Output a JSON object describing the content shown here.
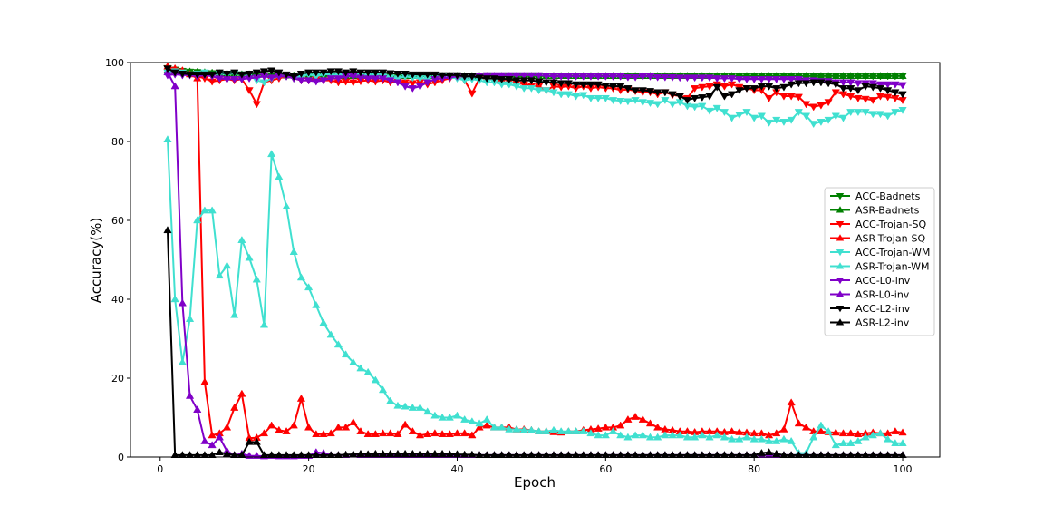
{
  "chart_data": {
    "type": "line",
    "title": "",
    "xlabel": "Epoch",
    "ylabel": "Accuracy(%)",
    "xlim": [
      -4,
      105
    ],
    "ylim": [
      0,
      100
    ],
    "xticks": [
      0,
      20,
      40,
      60,
      80,
      100
    ],
    "yticks": [
      0,
      20,
      40,
      60,
      80,
      100
    ],
    "grid": false,
    "legend_position": "right-center",
    "x": [
      1,
      2,
      3,
      4,
      5,
      6,
      7,
      8,
      9,
      10,
      11,
      12,
      13,
      14,
      15,
      16,
      17,
      18,
      19,
      20,
      21,
      22,
      23,
      24,
      25,
      26,
      27,
      28,
      29,
      30,
      31,
      32,
      33,
      34,
      35,
      36,
      37,
      38,
      39,
      40,
      41,
      42,
      43,
      44,
      45,
      46,
      47,
      48,
      49,
      50,
      51,
      52,
      53,
      54,
      55,
      56,
      57,
      58,
      59,
      60,
      61,
      62,
      63,
      64,
      65,
      66,
      67,
      68,
      69,
      70,
      71,
      72,
      73,
      74,
      75,
      76,
      77,
      78,
      79,
      80,
      81,
      82,
      83,
      84,
      85,
      86,
      87,
      88,
      89,
      90,
      91,
      92,
      93,
      94,
      95,
      96,
      97,
      98,
      99,
      100
    ],
    "series": [
      {
        "name": "ACC-Badnets",
        "color": "#008000",
        "marker": "triangle-down",
        "values": [
          98.6,
          98.2,
          97.9,
          97.7,
          97.6,
          97.4,
          97.3,
          97.2,
          97.1,
          97.0,
          97.0,
          96.9,
          96.9,
          96.8,
          96.8,
          96.8,
          96.7,
          96.7,
          96.7,
          96.6,
          96.6,
          96.6,
          96.6,
          96.6,
          96.6,
          96.6,
          96.6,
          96.6,
          96.6,
          96.6,
          96.6,
          96.6,
          96.6,
          96.6,
          96.6,
          96.6,
          96.6,
          96.6,
          96.6,
          96.6,
          96.6,
          96.6,
          96.6,
          96.6,
          96.6,
          96.6,
          96.6,
          96.6,
          96.6,
          96.6,
          96.6,
          96.6,
          96.6,
          96.6,
          96.6,
          96.6,
          96.6,
          96.6,
          96.6,
          96.6,
          96.6,
          96.6,
          96.6,
          96.6,
          96.6,
          96.6,
          96.6,
          96.6,
          96.6,
          96.6,
          96.6,
          96.6,
          96.6,
          96.6,
          96.6,
          96.6,
          96.6,
          96.6,
          96.6,
          96.6,
          96.6,
          96.6,
          96.6,
          96.6,
          96.6,
          96.6,
          96.6,
          96.6,
          96.6,
          96.6,
          96.6,
          96.6,
          96.6,
          96.6,
          96.6,
          96.6,
          96.6,
          96.6,
          96.6,
          96.6
        ]
      },
      {
        "name": "ASR-Badnets",
        "color": "#008000",
        "marker": "triangle-up",
        "values": [
          98.0,
          97.9,
          97.8,
          97.7,
          97.6,
          97.5,
          97.4,
          97.3,
          97.2,
          97.1,
          97.0,
          97.0,
          96.9,
          96.9,
          96.8,
          96.8,
          96.7,
          96.7,
          96.7,
          96.6,
          96.6,
          96.6,
          96.6,
          96.6,
          96.6,
          96.6,
          96.6,
          96.6,
          96.6,
          96.6,
          96.6,
          96.6,
          96.6,
          96.6,
          96.6,
          96.6,
          96.6,
          96.6,
          96.6,
          96.6,
          96.6,
          96.6,
          96.6,
          96.6,
          96.6,
          96.6,
          96.6,
          96.6,
          96.6,
          96.6,
          96.6,
          96.6,
          96.6,
          96.6,
          96.6,
          96.6,
          96.6,
          96.6,
          96.6,
          96.6,
          96.6,
          96.6,
          96.6,
          96.6,
          96.6,
          96.6,
          96.6,
          96.6,
          96.6,
          96.6,
          96.6,
          96.6,
          96.6,
          96.6,
          96.6,
          96.6,
          96.6,
          96.6,
          96.6,
          96.6,
          96.6,
          96.6,
          96.6,
          96.6,
          96.6,
          96.6,
          96.6,
          96.6,
          96.6,
          96.6,
          96.6,
          96.6,
          96.6,
          96.6,
          96.6,
          96.6,
          96.6,
          96.6,
          96.6,
          96.6
        ]
      },
      {
        "name": "ACC-Trojan-SQ",
        "color": "#ff0000",
        "marker": "triangle-down",
        "values": [
          98.5,
          98.0,
          97.5,
          97.0,
          96.5,
          96.0,
          95.2,
          95.5,
          95.8,
          95.5,
          95.8,
          93.0,
          89.5,
          95.0,
          95.5,
          96.0,
          96.5,
          96.0,
          95.5,
          95.5,
          95.8,
          95.5,
          95.5,
          95.0,
          95.2,
          95.0,
          95.3,
          95.5,
          95.2,
          95.5,
          95.0,
          95.3,
          95.0,
          94.8,
          95.0,
          94.5,
          95.0,
          95.5,
          96.0,
          96.2,
          95.5,
          92.2,
          96.0,
          96.0,
          95.5,
          95.0,
          95.0,
          94.8,
          94.5,
          94.2,
          94.0,
          93.0,
          94.0,
          93.8,
          94.0,
          93.5,
          94.0,
          93.5,
          93.8,
          93.5,
          93.5,
          93.0,
          93.2,
          92.8,
          92.5,
          92.5,
          92.0,
          92.5,
          91.8,
          91.5,
          91.0,
          93.5,
          93.8,
          94.0,
          94.5,
          94.0,
          94.5,
          93.8,
          93.5,
          93.0,
          93.0,
          91.0,
          92.5,
          91.5,
          91.5,
          91.3,
          89.5,
          88.8,
          89.2,
          90.0,
          92.5,
          92.0,
          91.5,
          91.0,
          90.8,
          90.5,
          91.5,
          91.3,
          91.0,
          90.5
        ]
      },
      {
        "name": "ASR-Trojan-SQ",
        "color": "#ff0000",
        "marker": "triangle-up",
        "values": [
          99.0,
          98.5,
          98.0,
          97.0,
          96.0,
          19.0,
          5.5,
          6.0,
          7.5,
          12.5,
          16.0,
          4.8,
          4.9,
          6.0,
          8.0,
          6.8,
          6.5,
          8.0,
          14.8,
          7.5,
          5.8,
          5.8,
          6.0,
          7.5,
          7.5,
          8.8,
          6.5,
          5.8,
          5.8,
          6.0,
          6.0,
          5.8,
          8.2,
          6.5,
          5.5,
          5.8,
          6.0,
          5.8,
          5.8,
          6.0,
          6.0,
          5.5,
          7.5,
          8.0,
          7.5,
          7.5,
          7.5,
          7.0,
          7.0,
          6.8,
          6.5,
          6.5,
          6.3,
          6.2,
          6.5,
          6.5,
          6.8,
          7.0,
          7.2,
          7.5,
          7.5,
          8.0,
          9.5,
          10.2,
          9.5,
          8.5,
          7.5,
          7.0,
          6.8,
          6.5,
          6.5,
          6.3,
          6.5,
          6.5,
          6.5,
          6.3,
          6.5,
          6.3,
          6.2,
          6.0,
          6.0,
          5.5,
          6.0,
          7.0,
          13.8,
          8.5,
          7.5,
          6.5,
          6.5,
          6.3,
          6.2,
          6.0,
          6.0,
          5.8,
          6.0,
          6.2,
          6.0,
          6.0,
          6.5,
          6.2
        ]
      },
      {
        "name": "ACC-Trojan-WM",
        "color": "#40e0d0",
        "marker": "triangle-down",
        "values": [
          97.5,
          97.8,
          97.5,
          97.0,
          97.2,
          97.5,
          97.0,
          97.2,
          97.0,
          97.3,
          97.0,
          96.8,
          95.5,
          95.0,
          96.0,
          96.5,
          96.5,
          96.0,
          96.5,
          97.0,
          96.5,
          97.0,
          97.0,
          96.8,
          97.0,
          97.0,
          96.8,
          96.8,
          96.5,
          96.5,
          96.2,
          96.0,
          96.5,
          96.2,
          96.0,
          96.0,
          96.5,
          96.5,
          96.2,
          96.0,
          95.5,
          95.8,
          95.5,
          95.0,
          95.0,
          94.5,
          94.5,
          94.0,
          93.5,
          93.5,
          93.0,
          93.0,
          92.5,
          92.0,
          92.0,
          91.5,
          91.8,
          91.0,
          91.0,
          91.0,
          90.5,
          90.3,
          90.2,
          90.5,
          90.0,
          89.8,
          89.5,
          90.5,
          89.5,
          90.0,
          89.0,
          88.8,
          89.0,
          87.8,
          88.5,
          87.5,
          86.0,
          86.8,
          87.5,
          86.0,
          86.5,
          84.8,
          85.5,
          85.0,
          85.5,
          87.5,
          86.5,
          84.5,
          85.0,
          85.5,
          86.5,
          86.0,
          87.5,
          87.5,
          87.5,
          87.0,
          87.0,
          86.5,
          87.5,
          88.0
        ]
      },
      {
        "name": "ASR-Trojan-WM",
        "color": "#40e0d0",
        "marker": "triangle-up",
        "values": [
          80.5,
          40.0,
          24.0,
          35.0,
          60.0,
          62.5,
          62.5,
          46.0,
          48.5,
          36.0,
          55.0,
          50.5,
          45.0,
          33.5,
          76.8,
          71.0,
          63.5,
          52.0,
          45.5,
          43.0,
          38.5,
          34.0,
          31.0,
          28.5,
          26.0,
          24.0,
          22.5,
          21.5,
          19.5,
          17.0,
          14.2,
          13.0,
          12.8,
          12.5,
          12.5,
          11.5,
          10.5,
          10.0,
          10.0,
          10.5,
          9.5,
          9.0,
          8.5,
          9.5,
          7.5,
          7.5,
          7.0,
          7.0,
          6.8,
          6.8,
          6.5,
          6.5,
          6.8,
          6.5,
          6.5,
          6.5,
          6.5,
          6.0,
          5.5,
          5.5,
          6.5,
          5.5,
          5.0,
          5.5,
          5.5,
          5.0,
          5.0,
          5.5,
          5.5,
          5.5,
          5.0,
          5.0,
          5.5,
          5.0,
          5.5,
          5.0,
          4.5,
          4.5,
          5.0,
          4.5,
          4.5,
          4.0,
          4.0,
          4.5,
          4.0,
          1.0,
          1.0,
          5.0,
          8.0,
          6.5,
          3.0,
          3.5,
          3.5,
          4.0,
          5.0,
          5.5,
          6.0,
          4.5,
          3.5,
          3.5
        ]
      },
      {
        "name": "ACC-L0-inv",
        "color": "#8000c8",
        "marker": "triangle-down",
        "values": [
          96.8,
          97.0,
          96.8,
          96.8,
          96.5,
          96.8,
          96.5,
          96.0,
          95.8,
          95.8,
          95.8,
          96.0,
          96.2,
          96.5,
          96.2,
          96.5,
          96.5,
          96.0,
          95.5,
          95.5,
          95.2,
          95.5,
          96.0,
          96.0,
          96.5,
          96.5,
          96.2,
          96.0,
          96.0,
          96.0,
          95.5,
          95.0,
          94.0,
          93.5,
          94.0,
          95.0,
          95.8,
          96.0,
          96.2,
          96.5,
          96.5,
          96.5,
          96.7,
          96.8,
          96.8,
          96.8,
          96.8,
          96.8,
          96.8,
          96.8,
          96.8,
          96.6,
          96.5,
          96.5,
          96.5,
          96.5,
          96.5,
          96.5,
          96.5,
          96.5,
          96.5,
          96.5,
          96.3,
          96.3,
          96.5,
          96.5,
          96.3,
          96.3,
          96.3,
          96.2,
          96.2,
          96.2,
          96.2,
          96.2,
          96.0,
          96.0,
          96.0,
          95.8,
          95.8,
          95.8,
          95.8,
          95.8,
          95.8,
          95.8,
          95.8,
          95.8,
          95.5,
          95.5,
          95.3,
          95.3,
          95.0,
          95.0,
          95.0,
          94.8,
          94.8,
          94.8,
          94.5,
          94.5,
          94.5,
          94.3
        ]
      },
      {
        "name": "ASR-L0-inv",
        "color": "#8000c8",
        "marker": "triangle-up",
        "values": [
          97.5,
          94.0,
          39.0,
          15.5,
          12.0,
          4.0,
          3.0,
          5.0,
          1.5,
          0.5,
          0.8,
          0.3,
          0.3,
          0.2,
          0.3,
          0.2,
          0.2,
          0.2,
          0.3,
          0.3,
          1.2,
          1.0,
          0.5,
          0.5,
          0.5,
          0.6,
          0.5,
          0.5,
          0.5,
          0.5,
          0.5,
          0.5,
          0.5,
          0.5,
          0.5,
          0.5,
          0.5,
          0.5,
          0.5,
          0.5,
          0.5,
          0.5,
          0.5,
          0.5,
          0.5,
          0.5,
          0.5,
          0.5,
          0.5,
          0.5,
          0.5,
          0.5,
          0.5,
          0.5,
          0.5,
          0.5,
          0.5,
          0.5,
          0.5,
          0.5,
          0.5,
          0.5,
          0.5,
          0.5,
          0.5,
          0.5,
          0.5,
          0.5,
          0.5,
          0.5,
          0.5,
          0.5,
          0.5,
          0.5,
          0.5,
          0.5,
          0.5,
          0.5,
          0.5,
          0.5,
          0.5,
          0.5,
          0.5,
          0.5,
          0.5,
          0.5,
          0.5,
          0.5,
          0.5,
          0.5,
          0.5,
          0.5,
          0.5,
          0.5,
          0.5,
          0.5,
          0.5,
          0.5,
          0.5,
          0.5
        ]
      },
      {
        "name": "ACC-L2-inv",
        "color": "#000000",
        "marker": "triangle-down",
        "values": [
          98.5,
          97.5,
          97.2,
          97.0,
          97.0,
          97.0,
          97.0,
          97.5,
          97.2,
          97.5,
          97.0,
          97.2,
          97.5,
          97.8,
          98.0,
          97.5,
          97.0,
          96.5,
          97.2,
          97.5,
          97.5,
          97.5,
          97.8,
          97.8,
          97.5,
          97.8,
          97.5,
          97.5,
          97.5,
          97.5,
          97.3,
          97.2,
          97.2,
          97.0,
          97.0,
          97.0,
          97.0,
          96.8,
          96.8,
          96.8,
          96.5,
          96.5,
          96.2,
          96.0,
          96.0,
          95.8,
          95.8,
          95.5,
          95.5,
          95.5,
          95.2,
          95.0,
          95.0,
          94.8,
          94.8,
          94.5,
          94.5,
          94.5,
          94.5,
          94.2,
          94.0,
          94.0,
          93.5,
          93.0,
          93.0,
          92.8,
          92.5,
          92.5,
          92.0,
          91.5,
          90.5,
          91.0,
          91.2,
          91.5,
          93.8,
          91.5,
          92.0,
          93.0,
          93.5,
          93.5,
          94.0,
          94.0,
          93.5,
          93.8,
          94.5,
          94.8,
          94.8,
          95.0,
          95.0,
          94.8,
          94.5,
          93.5,
          93.5,
          93.0,
          94.0,
          93.8,
          93.5,
          93.0,
          92.5,
          92.0
        ]
      },
      {
        "name": "ASR-L2-inv",
        "color": "#000000",
        "marker": "triangle-up",
        "values": [
          57.5,
          0.5,
          0.5,
          0.5,
          0.5,
          0.5,
          0.5,
          1.2,
          0.8,
          0.5,
          0.5,
          3.8,
          3.8,
          0.5,
          0.5,
          0.5,
          0.5,
          0.5,
          0.5,
          0.5,
          0.5,
          0.5,
          0.5,
          0.5,
          0.6,
          0.7,
          0.8,
          0.7,
          0.8,
          0.8,
          0.8,
          0.8,
          0.8,
          0.8,
          0.8,
          0.8,
          0.8,
          0.8,
          0.7,
          0.7,
          0.6,
          0.6,
          0.5,
          0.5,
          0.5,
          0.5,
          0.5,
          0.5,
          0.5,
          0.5,
          0.5,
          0.5,
          0.5,
          0.5,
          0.5,
          0.5,
          0.5,
          0.5,
          0.5,
          0.5,
          0.5,
          0.5,
          0.5,
          0.5,
          0.5,
          0.5,
          0.5,
          0.5,
          0.5,
          0.5,
          0.5,
          0.5,
          0.5,
          0.5,
          0.5,
          0.5,
          0.5,
          0.5,
          0.5,
          0.5,
          1.0,
          1.2,
          0.8,
          0.5,
          0.5,
          0.5,
          0.5,
          0.5,
          0.5,
          0.5,
          0.5,
          0.5,
          0.5,
          0.5,
          0.5,
          0.5,
          0.5,
          0.5,
          0.5,
          0.5
        ]
      }
    ]
  }
}
